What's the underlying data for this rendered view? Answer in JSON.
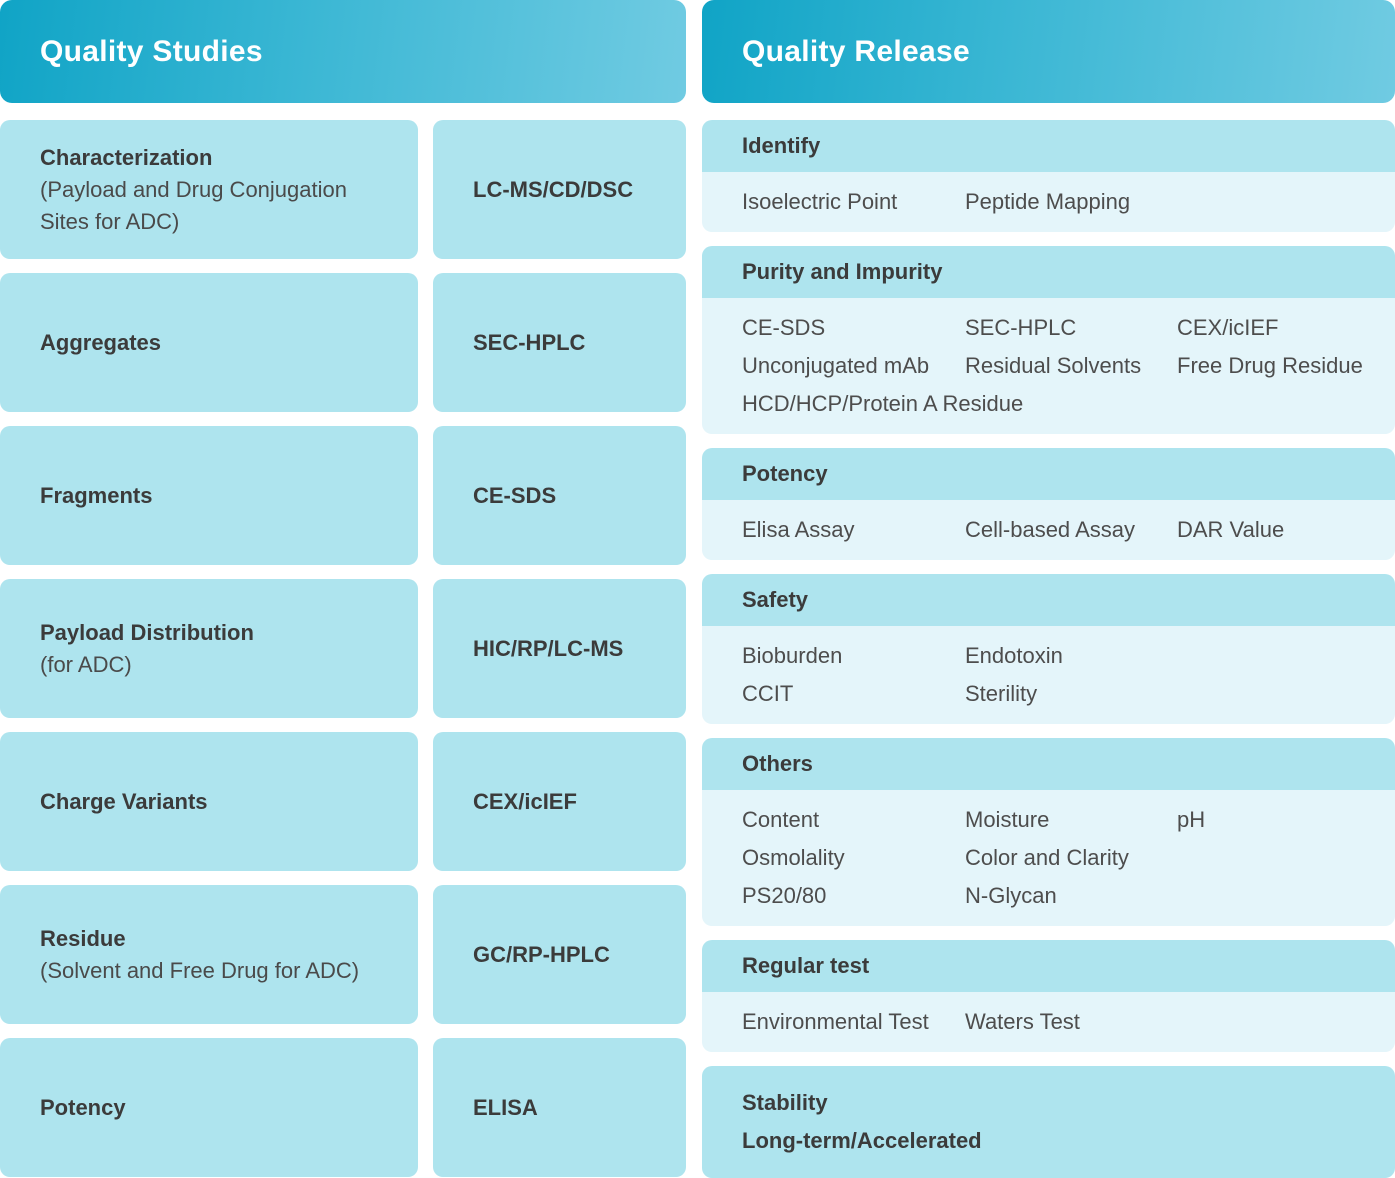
{
  "left_panel": {
    "title": "Quality Studies",
    "rows": [
      {
        "label": "Characterization",
        "sublabel": "(Payload and Drug Conjugation\n Sites for ADC)",
        "method": "LC-MS/CD/DSC"
      },
      {
        "label": "Aggregates",
        "sublabel": "",
        "method": "SEC-HPLC"
      },
      {
        "label": "Fragments",
        "sublabel": "",
        "method": "CE-SDS"
      },
      {
        "label": "Payload Distribution",
        "sublabel": "(for ADC)",
        "method": "HIC/RP/LC-MS"
      },
      {
        "label": "Charge Variants",
        "sublabel": "",
        "method": "CEX/icIEF"
      },
      {
        "label": "Residue",
        "sublabel": "(Solvent and Free Drug  for ADC)",
        "method": "GC/RP-HPLC"
      },
      {
        "label": "Potency",
        "sublabel": "",
        "method": "ELISA"
      }
    ]
  },
  "right_panel": {
    "title": "Quality Release",
    "sections": [
      {
        "header": "Identify",
        "columns": [
          [
            "Isoelectric Point"
          ],
          [
            "Peptide Mapping"
          ],
          []
        ]
      },
      {
        "header": "Purity and Impurity",
        "columns": [
          [
            "CE-SDS",
            "Unconjugated mAb",
            "HCD/HCP/Protein A Residue"
          ],
          [
            "SEC-HPLC",
            "Residual Solvents"
          ],
          [
            "CEX/icIEF",
            "Free Drug Residue"
          ]
        ]
      },
      {
        "header": "Potency",
        "columns": [
          [
            "Elisa Assay"
          ],
          [
            "Cell-based Assay"
          ],
          [
            "DAR Value"
          ]
        ]
      },
      {
        "header": "Safety",
        "columns": [
          [
            "Bioburden",
            "CCIT"
          ],
          [
            "Endotoxin",
            "Sterility"
          ],
          []
        ]
      },
      {
        "header": "Others",
        "columns": [
          [
            "Content",
            "Osmolality",
            "PS20/80"
          ],
          [
            "Moisture",
            "Color and Clarity",
            "N-Glycan"
          ],
          [
            "pH"
          ]
        ]
      },
      {
        "header": "Regular test",
        "columns": [
          [
            "Environmental Test"
          ],
          [
            "Waters Test"
          ],
          []
        ]
      }
    ],
    "stability": {
      "title": "Stability",
      "subtitle": "Long-term/Accelerated"
    }
  },
  "colors": {
    "header_gradient_start": "#10a4c6",
    "header_gradient_end": "#70cbe2",
    "card_teal": "#aee4ee",
    "content_bg": "#e4f5fa",
    "heading_text": "#3b3b3b",
    "item_text": "#4d4d4d",
    "title_text": "#ffffff"
  }
}
